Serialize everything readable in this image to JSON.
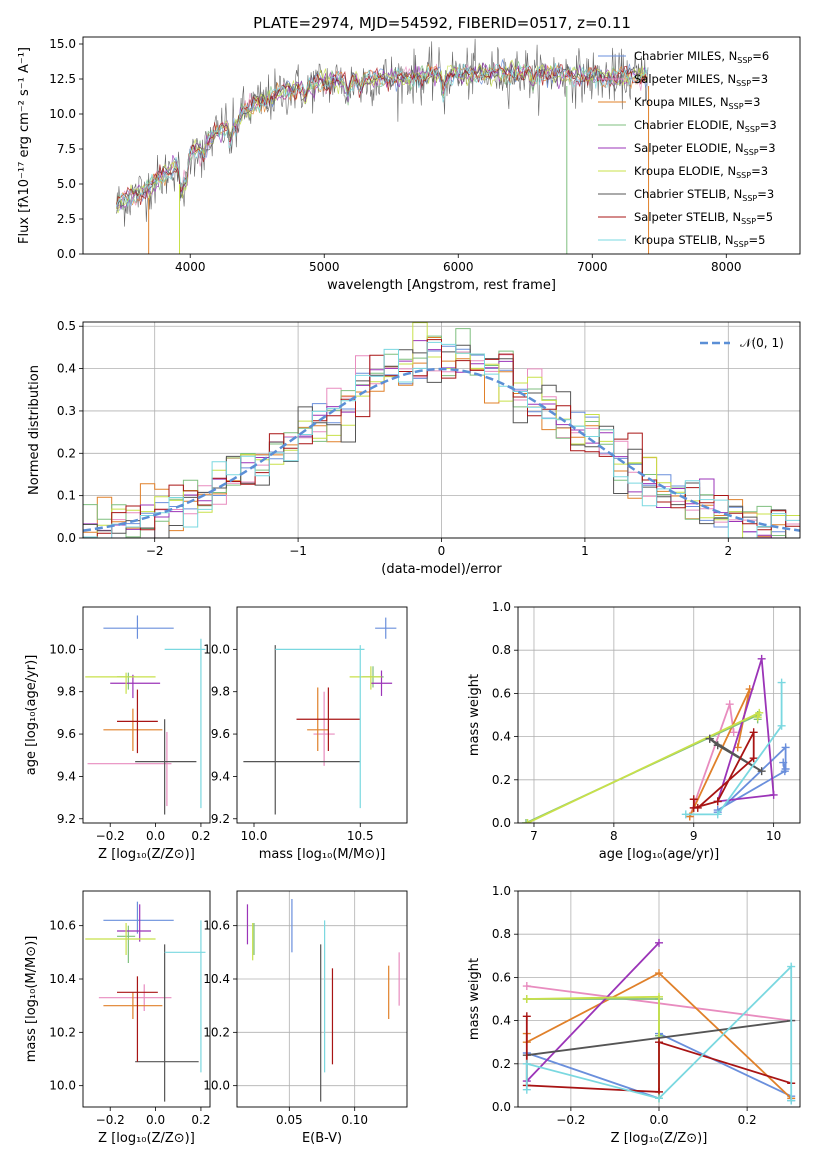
{
  "title": "PLATE=2974, MJD=54592, FIBERID=0517, z=0.11",
  "colors": {
    "Chabrier MILES": "#6a8fdc",
    "Salpeter MILES": "#e88cbf",
    "Kroupa MILES": "#e0802a",
    "Chabrier ELODIE": "#7fbf7f",
    "Salpeter ELODIE": "#9b34b8",
    "Kroupa ELODIE": "#c8e04a",
    "Chabrier STELIB": "#555555",
    "Salpeter STELIB": "#a81414",
    "Kroupa STELIB": "#7ad8e0",
    "normal": "#5b8fd6"
  },
  "chart_data": [
    {
      "id": "spectrum",
      "type": "line",
      "title": "PLATE=2974, MJD=54592, FIBERID=0517, z=0.11",
      "xlabel": "wavelength [Angstrom, rest frame]",
      "ylabel": "Flux [fλ10⁻¹⁷ erg cm⁻² s⁻¹ A⁻¹]",
      "xlim": [
        3200,
        8550
      ],
      "ylim": [
        0,
        15.5
      ],
      "xticks": [
        4000,
        5000,
        6000,
        7000,
        8000
      ],
      "yticks": [
        0.0,
        2.5,
        5.0,
        7.5,
        10.0,
        12.5,
        15.0
      ],
      "ytick_labels": [
        "0.0",
        "2.5",
        "5.0",
        "7.5",
        "10.0",
        "12.5",
        "15.0"
      ],
      "legend": [
        "Chabrier MILES, N_SSP=6",
        "Salpeter MILES, N_SSP=3",
        "Kroupa MILES, N_SSP=3",
        "Chabrier ELODIE, N_SSP=3",
        "Salpeter ELODIE, N_SSP=3",
        "Kroupa ELODIE, N_SSP=3",
        "Chabrier STELIB, N_SSP=3",
        "Salpeter STELIB, N_SSP=5",
        "Kroupa STELIB, N_SSP=5"
      ],
      "legend_placement": "right",
      "continuum": {
        "x": [
          3450,
          3700,
          3950,
          4100,
          4300,
          4500,
          4700,
          5000,
          5300,
          5600,
          5900,
          6200,
          6500,
          6800,
          7100,
          7400
        ],
        "y": [
          3.5,
          4.8,
          6.8,
          7.8,
          9.5,
          10.7,
          11.6,
          12.3,
          12.5,
          12.6,
          12.8,
          12.9,
          13.0,
          12.8,
          12.6,
          12.7
        ]
      }
    },
    {
      "id": "residuals",
      "type": "line",
      "xlabel": "(data-model)/error",
      "ylabel": "Normed distribution",
      "xlim": [
        -2.5,
        2.5
      ],
      "ylim": [
        0,
        0.51
      ],
      "xticks": [
        -2,
        -1,
        0,
        1,
        2
      ],
      "xtick_labels": [
        "−2",
        "−1",
        "0",
        "1",
        "2"
      ],
      "yticks": [
        0.0,
        0.1,
        0.2,
        0.3,
        0.4,
        0.5
      ],
      "ytick_labels": [
        "0.0",
        "0.1",
        "0.2",
        "0.3",
        "0.4",
        "0.5"
      ],
      "grid": true,
      "legend": [
        "𝒩(0, 1)"
      ],
      "legend_placement": "top-right"
    },
    {
      "id": "age_vs_Z",
      "type": "scatter",
      "xlabel": "Z [log₁₀(Z/Z⊙)]",
      "ylabel": "age  [log₁₀(age/yr)]",
      "xlim": [
        -0.32,
        0.24
      ],
      "ylim": [
        9.18,
        10.2
      ],
      "xticks": [
        -0.2,
        0.0,
        0.2
      ],
      "xtick_labels": [
        "−0.2",
        "0.0",
        "0.2"
      ],
      "yticks": [
        9.2,
        9.4,
        9.6,
        9.8,
        10.0
      ],
      "ytick_labels": [
        "9.2",
        "9.4",
        "9.6",
        "9.8",
        "10.0"
      ],
      "series": [
        {
          "name": "Chabrier MILES",
          "x": -0.08,
          "y": 10.1,
          "xerr": [
            0.15,
            0.16
          ],
          "yerr": [
            0.05,
            0.06
          ]
        },
        {
          "name": "Salpeter MILES",
          "x": 0.05,
          "y": 9.46,
          "xerr": [
            0.35,
            0.02
          ],
          "yerr": [
            0.2,
            0.15
          ]
        },
        {
          "name": "Kroupa MILES",
          "x": -0.1,
          "y": 9.62,
          "xerr": [
            0.13,
            0.13
          ],
          "yerr": [
            0.1,
            0.1
          ]
        },
        {
          "name": "Chabrier ELODIE",
          "x": -0.12,
          "y": 9.87,
          "xerr": [
            0.05,
            0.03
          ],
          "yerr": [
            0.06,
            0.02
          ]
        },
        {
          "name": "Salpeter ELODIE",
          "x": -0.1,
          "y": 9.84,
          "xerr": [
            0.1,
            0.12
          ],
          "yerr": [
            0.07,
            0.04
          ]
        },
        {
          "name": "Kroupa ELODIE",
          "x": -0.13,
          "y": 9.87,
          "xerr": [
            0.18,
            0.13
          ],
          "yerr": [
            0.08,
            0.02
          ]
        },
        {
          "name": "Chabrier STELIB",
          "x": 0.04,
          "y": 9.47,
          "xerr": [
            0.13,
            0.14
          ],
          "yerr": [
            0.25,
            0.2
          ]
        },
        {
          "name": "Salpeter STELIB",
          "x": -0.08,
          "y": 9.66,
          "xerr": [
            0.09,
            0.09
          ],
          "yerr": [
            0.15,
            0.15
          ]
        },
        {
          "name": "Kroupa STELIB",
          "x": 0.2,
          "y": 10.0,
          "xerr": [
            0.16,
            0.02
          ],
          "yerr": [
            0.75,
            0.05
          ]
        }
      ]
    },
    {
      "id": "age_vs_mass",
      "type": "scatter",
      "xlabel": "mass [log₁₀(M/M⊙)]",
      "xlim": [
        9.92,
        10.72
      ],
      "ylim": [
        9.18,
        10.2
      ],
      "xticks": [
        10.0,
        10.5
      ],
      "xtick_labels": [
        "10.0",
        "10.5"
      ],
      "yticks": [
        9.2,
        9.4,
        9.6,
        9.8,
        10.0
      ],
      "ytick_labels": [
        "9.2",
        "9.4",
        "9.6",
        "9.8",
        "10.0"
      ],
      "series": [
        {
          "name": "Chabrier MILES",
          "x": 10.62,
          "y": 10.1,
          "xerr": [
            0.05,
            0.05
          ],
          "yerr": [
            0.05,
            0.05
          ]
        },
        {
          "name": "Salpeter MILES",
          "x": 10.33,
          "y": 9.6,
          "xerr": [
            0.05,
            0.05
          ],
          "yerr": [
            0.15,
            0.2
          ]
        },
        {
          "name": "Kroupa MILES",
          "x": 10.3,
          "y": 9.62,
          "xerr": [
            0.05,
            0.05
          ],
          "yerr": [
            0.1,
            0.2
          ]
        },
        {
          "name": "Chabrier ELODIE",
          "x": 10.56,
          "y": 9.87,
          "xerr": [
            0.05,
            0.05
          ],
          "yerr": [
            0.05,
            0.05
          ]
        },
        {
          "name": "Salpeter ELODIE",
          "x": 10.6,
          "y": 9.84,
          "xerr": [
            0.05,
            0.05
          ],
          "yerr": [
            0.06,
            0.06
          ]
        },
        {
          "name": "Kroupa ELODIE",
          "x": 10.55,
          "y": 9.87,
          "xerr": [
            0.1,
            0.05
          ],
          "yerr": [
            0.06,
            0.05
          ]
        },
        {
          "name": "Chabrier STELIB",
          "x": 10.1,
          "y": 9.47,
          "xerr": [
            0.15,
            0.4
          ],
          "yerr": [
            0.25,
            0.55
          ]
        },
        {
          "name": "Salpeter STELIB",
          "x": 10.35,
          "y": 9.67,
          "xerr": [
            0.15,
            0.15
          ],
          "yerr": [
            0.15,
            0.15
          ]
        },
        {
          "name": "Kroupa STELIB",
          "x": 10.5,
          "y": 10.0,
          "xerr": [
            0.4,
            0.02
          ],
          "yerr": [
            0.75,
            0.02
          ]
        }
      ]
    },
    {
      "id": "weight_vs_age",
      "type": "line",
      "xlabel": "age  [log₁₀(age/yr)]",
      "ylabel": "mass weight",
      "xlim": [
        6.8,
        10.33
      ],
      "ylim": [
        0,
        1.0
      ],
      "xticks": [
        7,
        8,
        9,
        10
      ],
      "xtick_labels": [
        "7",
        "8",
        "9",
        "10"
      ],
      "yticks": [
        0.0,
        0.2,
        0.4,
        0.6,
        0.8,
        1.0
      ],
      "ytick_labels": [
        "0.0",
        "0.2",
        "0.4",
        "0.6",
        "0.8",
        "1.0"
      ],
      "grid": true,
      "series": [
        {
          "name": "Chabrier MILES",
          "x": [
            9.3,
            10.15,
            10.15,
            10.12,
            10.14,
            9.3
          ],
          "y": [
            0.05,
            0.35,
            0.25,
            0.28,
            0.24,
            0.06
          ]
        },
        {
          "name": "Salpeter MILES",
          "x": [
            8.95,
            9.45,
            9.5
          ],
          "y": [
            0.03,
            0.55,
            0.42
          ]
        },
        {
          "name": "Kroupa MILES",
          "x": [
            8.95,
            9.7,
            9.55
          ],
          "y": [
            0.03,
            0.62,
            0.35
          ]
        },
        {
          "name": "Chabrier ELODIE",
          "x": [
            6.9,
            9.8,
            9.8
          ],
          "y": [
            0.0,
            0.5,
            0.48
          ]
        },
        {
          "name": "Salpeter ELODIE",
          "x": [
            9.3,
            9.85,
            10.0,
            9.3
          ],
          "y": [
            0.1,
            0.76,
            0.13,
            0.1
          ]
        },
        {
          "name": "Kroupa ELODIE",
          "x": [
            6.92,
            9.82,
            9.8
          ],
          "y": [
            0.0,
            0.51,
            0.49
          ]
        },
        {
          "name": "Chabrier STELIB",
          "x": [
            9.2,
            9.85,
            9.3,
            9.2
          ],
          "y": [
            0.39,
            0.24,
            0.36,
            0.39
          ]
        },
        {
          "name": "Salpeter STELIB",
          "x": [
            9.0,
            9.0,
            9.3,
            9.75,
            9.75,
            9.05
          ],
          "y": [
            0.11,
            0.07,
            0.1,
            0.42,
            0.3,
            0.07
          ]
        },
        {
          "name": "Kroupa STELIB",
          "x": [
            8.9,
            9.3,
            10.1,
            10.1
          ],
          "y": [
            0.04,
            0.04,
            0.45,
            0.65
          ]
        }
      ]
    },
    {
      "id": "mass_vs_Z",
      "type": "scatter",
      "xlabel": "Z [log₁₀(Z/Z⊙)]",
      "ylabel": "mass [log₁₀(M/M⊙)]",
      "xlim": [
        -0.32,
        0.24
      ],
      "ylim": [
        9.92,
        10.73
      ],
      "xticks": [
        -0.2,
        0.0,
        0.2
      ],
      "xtick_labels": [
        "−0.2",
        "0.0",
        "0.2"
      ],
      "yticks": [
        10.0,
        10.2,
        10.4,
        10.6
      ],
      "ytick_labels": [
        "10.0",
        "10.2",
        "10.4",
        "10.6"
      ],
      "series": [
        {
          "name": "Chabrier MILES",
          "x": -0.08,
          "y": 10.62,
          "xerr": [
            0.15,
            0.16
          ],
          "yerr": [
            0.05,
            0.07
          ]
        },
        {
          "name": "Salpeter MILES",
          "x": -0.05,
          "y": 10.33,
          "xerr": [
            0.2,
            0.12
          ],
          "yerr": [
            0.05,
            0.05
          ]
        },
        {
          "name": "Kroupa MILES",
          "x": -0.1,
          "y": 10.3,
          "xerr": [
            0.13,
            0.13
          ],
          "yerr": [
            0.05,
            0.05
          ]
        },
        {
          "name": "Chabrier ELODIE",
          "x": -0.12,
          "y": 10.56,
          "xerr": [
            0.05,
            0.03
          ],
          "yerr": [
            0.1,
            0.04
          ]
        },
        {
          "name": "Salpeter ELODIE",
          "x": -0.07,
          "y": 10.58,
          "xerr": [
            0.1,
            0.05
          ],
          "yerr": [
            0.04,
            0.1
          ]
        },
        {
          "name": "Kroupa ELODIE",
          "x": -0.13,
          "y": 10.55,
          "xerr": [
            0.18,
            0.13
          ],
          "yerr": [
            0.06,
            0.06
          ]
        },
        {
          "name": "Chabrier STELIB",
          "x": 0.04,
          "y": 10.09,
          "xerr": [
            0.13,
            0.15
          ],
          "yerr": [
            0.15,
            0.44
          ]
        },
        {
          "name": "Salpeter STELIB",
          "x": -0.08,
          "y": 10.35,
          "xerr": [
            0.09,
            0.09
          ],
          "yerr": [
            0.26,
            0.06
          ]
        },
        {
          "name": "Kroupa STELIB",
          "x": 0.2,
          "y": 10.5,
          "xerr": [
            0.16,
            0.02
          ],
          "yerr": [
            0.45,
            0.12
          ]
        }
      ]
    },
    {
      "id": "mass_vs_EBV",
      "type": "scatter",
      "xlabel": "E(B-V)",
      "xlim": [
        0.01,
        0.14
      ],
      "ylim": [
        9.92,
        10.73
      ],
      "xticks": [
        0.05,
        0.1
      ],
      "xtick_labels": [
        "0.05",
        "0.10"
      ],
      "yticks": [
        10.0,
        10.2,
        10.4,
        10.6
      ],
      "ytick_labels": [
        "10.0",
        "10.2",
        "10.4",
        "10.6"
      ],
      "series": [
        {
          "name": "Chabrier MILES",
          "x": 0.052,
          "y": 10.6,
          "yerr": [
            0.1,
            0.1
          ]
        },
        {
          "name": "Salpeter MILES",
          "x": 0.134,
          "y": 10.4,
          "yerr": [
            0.1,
            0.1
          ]
        },
        {
          "name": "Kroupa MILES",
          "x": 0.126,
          "y": 10.35,
          "yerr": [
            0.1,
            0.1
          ]
        },
        {
          "name": "Chabrier ELODIE",
          "x": 0.023,
          "y": 10.57,
          "yerr": [
            0.08,
            0.04
          ]
        },
        {
          "name": "Salpeter ELODIE",
          "x": 0.018,
          "y": 10.58,
          "yerr": [
            0.05,
            0.1
          ]
        },
        {
          "name": "Kroupa ELODIE",
          "x": 0.022,
          "y": 10.55,
          "yerr": [
            0.08,
            0.06
          ]
        },
        {
          "name": "Chabrier STELIB",
          "x": 0.074,
          "y": 10.18,
          "yerr": [
            0.24,
            0.35
          ]
        },
        {
          "name": "Salpeter STELIB",
          "x": 0.083,
          "y": 10.26,
          "yerr": [
            0.18,
            0.18
          ]
        },
        {
          "name": "Kroupa STELIB",
          "x": 0.077,
          "y": 10.5,
          "yerr": [
            0.45,
            0.12
          ]
        }
      ]
    },
    {
      "id": "weight_vs_Z",
      "type": "line",
      "xlabel": "Z [log₁₀(Z/Z⊙)]",
      "ylabel": "mass weight",
      "xlim": [
        -0.32,
        0.32
      ],
      "ylim": [
        0,
        1.0
      ],
      "xticks": [
        -0.2,
        0.0,
        0.2
      ],
      "xtick_labels": [
        "−0.2",
        "0.0",
        "0.2"
      ],
      "yticks": [
        0.0,
        0.2,
        0.4,
        0.6,
        0.8,
        1.0
      ],
      "ytick_labels": [
        "0.0",
        "0.2",
        "0.4",
        "0.6",
        "0.8",
        "1.0"
      ],
      "grid": true,
      "series": [
        {
          "name": "Chabrier MILES",
          "x": [
            -0.3,
            0.0,
            0.0,
            0.3,
            0.3
          ],
          "y": [
            0.25,
            0.04,
            0.34,
            0.05,
            0.03
          ]
        },
        {
          "name": "Salpeter MILES",
          "x": [
            -0.3,
            0.3
          ],
          "y": [
            0.56,
            0.4
          ]
        },
        {
          "name": "Kroupa MILES",
          "x": [
            -0.3,
            -0.3,
            0.0,
            0.3
          ],
          "y": [
            0.34,
            0.3,
            0.62,
            0.04
          ]
        },
        {
          "name": "Chabrier ELODIE",
          "x": [
            -0.3,
            0.0,
            0.0
          ],
          "y": [
            0.5,
            0.5,
            0.33
          ]
        },
        {
          "name": "Salpeter ELODIE",
          "x": [
            -0.3,
            0.0
          ],
          "y": [
            0.12,
            0.76
          ]
        },
        {
          "name": "Kroupa ELODIE",
          "x": [
            -0.3,
            0.0,
            0.0
          ],
          "y": [
            0.5,
            0.51,
            0.04
          ]
        },
        {
          "name": "Chabrier STELIB",
          "x": [
            -0.3,
            0.3
          ],
          "y": [
            0.24,
            0.4
          ]
        },
        {
          "name": "Salpeter STELIB",
          "x": [
            -0.3,
            -0.3,
            0.0,
            0.0,
            0.3
          ],
          "y": [
            0.42,
            0.1,
            0.07,
            0.3,
            0.11
          ]
        },
        {
          "name": "Kroupa STELIB",
          "x": [
            -0.3,
            -0.3,
            0.0,
            0.3,
            0.3
          ],
          "y": [
            0.08,
            0.2,
            0.04,
            0.65,
            0.03
          ]
        }
      ]
    }
  ]
}
